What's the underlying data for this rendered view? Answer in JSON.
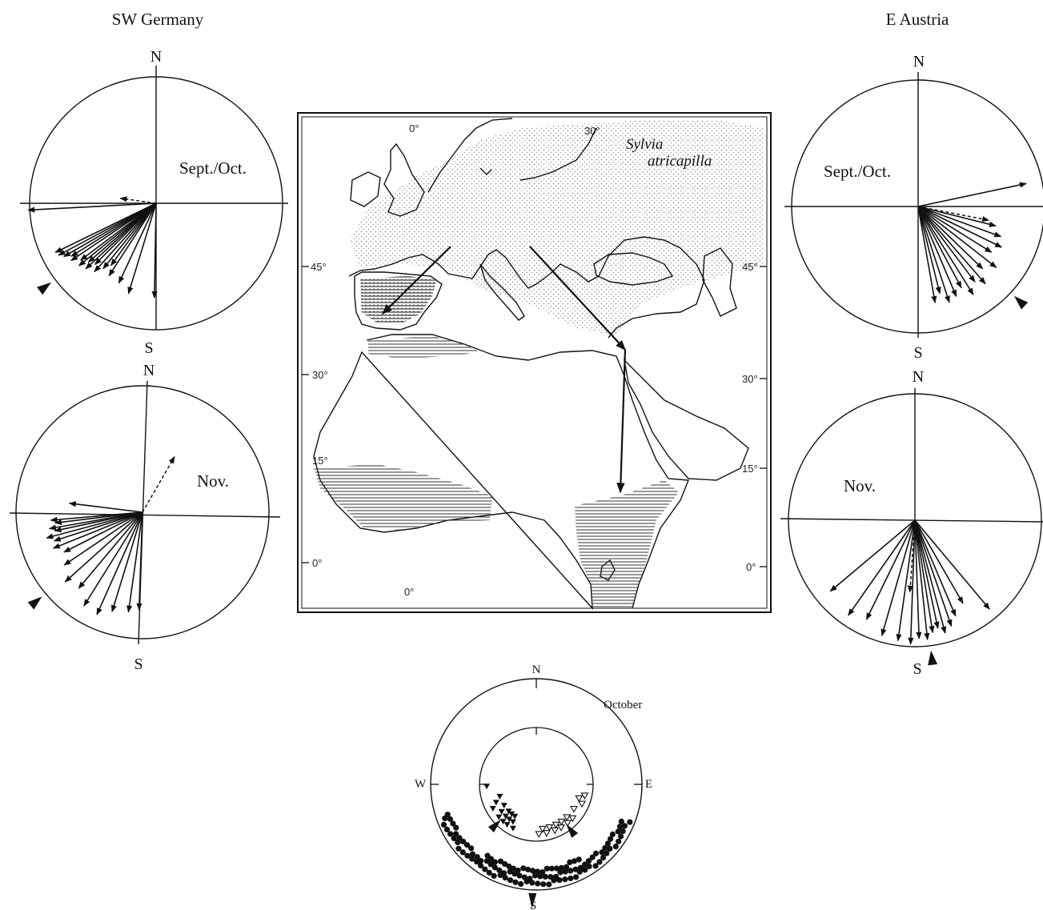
{
  "regions": {
    "left": "SW Germany",
    "right": "E Austria"
  },
  "cardinals": {
    "north": "N",
    "south": "S",
    "west": "W",
    "east": "E"
  },
  "seasons": {
    "sept_oct": "Sept./Oct.",
    "nov": "Nov.",
    "october": "October"
  },
  "map": {
    "species_line1": "Sylvia",
    "species_line2": "atricapilla",
    "lon_labels": {
      "lon0_top": "0°",
      "lon30_top": "30°",
      "lon0_bottom": "0°"
    },
    "lat_labels_left": {
      "lat45": "45°",
      "lat30": "30°",
      "lat15": "15°",
      "lat0": "0°"
    },
    "lat_labels_right": {
      "lat45": "45°",
      "lat30": "30°",
      "lat15": "15°",
      "lat0": "0°"
    }
  },
  "diagrams": {
    "sw_sept_oct": {
      "individual_bearings_deg": [
        267,
        244,
        242,
        240,
        238,
        236,
        233,
        231,
        229,
        227,
        225,
        222,
        219,
        216,
        213,
        205,
        197,
        181
      ],
      "dashed_bearing_deg": 278,
      "mean_bearing_deg": 233
    },
    "sw_nov": {
      "individual_bearings_deg": [
        277,
        265,
        263,
        260,
        258,
        255,
        252,
        248,
        243,
        236,
        228,
        220,
        212,
        204,
        197,
        188,
        182
      ],
      "dashed_bearing_deg": 30,
      "mean_bearing_deg": 230
    },
    "ea_sept_oct": {
      "individual_bearings_deg": [
        78,
        104,
        110,
        116,
        122,
        128,
        134,
        139,
        143,
        148,
        152,
        157,
        162,
        166,
        170
      ],
      "dashed_bearing_deg": 101,
      "mean_bearing_deg": 133
    },
    "ea_nov": {
      "individual_bearings_deg": [
        230,
        215,
        206,
        196,
        188,
        182,
        178,
        174,
        171,
        168,
        165,
        161,
        157,
        150,
        140
      ],
      "dashed_bearing_deg": 184,
      "mean_bearing_deg": 173
    },
    "october": {
      "inner_filled_deg": [
        208,
        212,
        214,
        216,
        218,
        220,
        222,
        224,
        226,
        229,
        232,
        237,
        241,
        246,
        252,
        268
      ],
      "inner_open_deg": [
        103,
        108,
        113,
        123,
        133,
        137,
        141,
        146,
        150,
        154,
        158,
        163,
        168,
        172,
        177
      ],
      "outer_dots_deg": [],
      "inner_means_deg": [
        225,
        143
      ],
      "outer_mean_deg": 182
    }
  }
}
